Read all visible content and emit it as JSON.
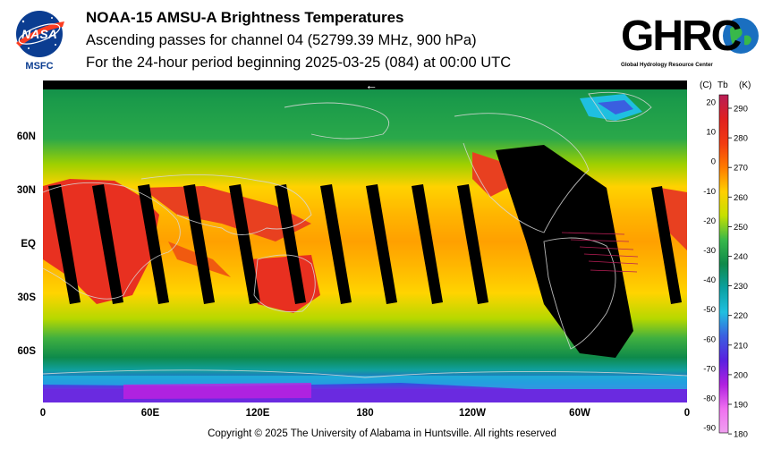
{
  "header": {
    "title": "NOAA-15 AMSU-A Brightness Temperatures",
    "subtitle": "Ascending passes for channel 04 (52799.39 MHz, 900 hPa)",
    "period": "For the 24-hour period beginning 2025-03-25 (084) at 00:00 UTC"
  },
  "logos": {
    "nasa_text": "NASA",
    "nasa_sub": "MSFC",
    "ghrc_text": "GHRC",
    "ghrc_sub": "Global Hydrology Resource Center"
  },
  "map": {
    "lat_labels": [
      "60N",
      "30N",
      "EQ",
      "30S",
      "60S"
    ],
    "lon_labels": [
      "0",
      "60E",
      "120E",
      "180",
      "120W",
      "60W",
      "0"
    ],
    "arrow": "←"
  },
  "colorbar": {
    "header_c": "(C)",
    "header_tb": "Tb",
    "header_k": "(K)",
    "celsius_ticks": [
      "20",
      "10",
      "0",
      "-10",
      "-20",
      "-30",
      "-40",
      "-50",
      "-60",
      "-70",
      "-80",
      "-90"
    ],
    "kelvin_ticks": [
      "290",
      "280",
      "270",
      "260",
      "250",
      "240",
      "230",
      "220",
      "210",
      "200",
      "190",
      "180"
    ],
    "gradient_colors": [
      "#b81e56",
      "#e02020",
      "#f23a10",
      "#ff7a00",
      "#ffcf00",
      "#c6e000",
      "#38b84a",
      "#0f8a4a",
      "#0aa0a0",
      "#1fbfe0",
      "#3a5fe0",
      "#5a20e0",
      "#b020e0",
      "#f070f0",
      "#f0a0f0"
    ]
  },
  "footer": {
    "copyright": "Copyright © 2025 The University of Alabama in Huntsville.  All rights reserved"
  }
}
